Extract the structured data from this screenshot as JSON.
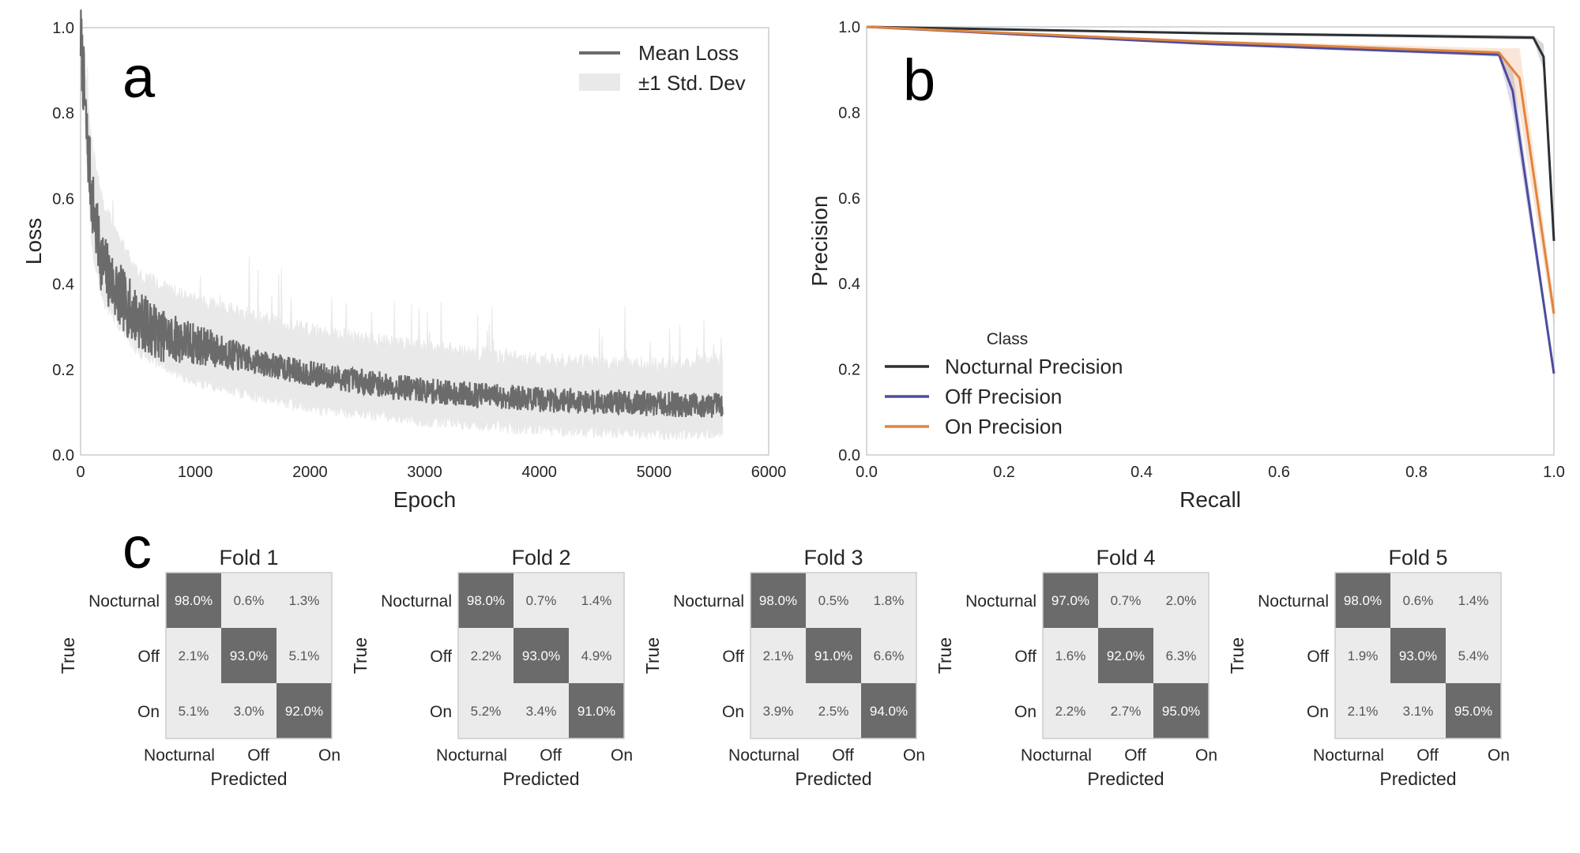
{
  "panel_labels": {
    "a": "a",
    "b": "b",
    "c": "c"
  },
  "colors": {
    "loss_mean": "#6b6b6b",
    "loss_band": "#e9e9e9",
    "nocturnal": "#2b3035",
    "off": "#4c4c9e",
    "on": "#e0843c",
    "cm_high": "#6b6b6b",
    "cm_low": "#ebebeb",
    "frame": "#cccccc"
  },
  "chart_data": [
    {
      "id": "loss",
      "type": "line",
      "xlabel": "Epoch",
      "ylabel": "Loss",
      "xlim": [
        0,
        6000
      ],
      "ylim": [
        0,
        1.0
      ],
      "xticks": [
        "0",
        "1000",
        "2000",
        "3000",
        "4000",
        "5000",
        "6000"
      ],
      "yticks": [
        "0.0",
        "0.2",
        "0.4",
        "0.6",
        "0.8",
        "1.0"
      ],
      "legend": {
        "position": "top-right",
        "entries": [
          "Mean Loss",
          "±1 Std. Dev"
        ]
      },
      "grid": false,
      "series": [
        {
          "name": "Mean Loss",
          "x": [
            0,
            25,
            50,
            100,
            150,
            200,
            300,
            400,
            500,
            700,
            1000,
            1500,
            2000,
            2500,
            3000,
            3500,
            4000,
            4500,
            5000,
            5600
          ],
          "y": [
            0.98,
            0.88,
            0.76,
            0.6,
            0.5,
            0.44,
            0.39,
            0.35,
            0.32,
            0.28,
            0.26,
            0.22,
            0.19,
            0.17,
            0.15,
            0.14,
            0.13,
            0.125,
            0.12,
            0.115
          ]
        }
      ],
      "band": {
        "name": "±1 Std. Dev",
        "x": [
          0,
          100,
          200,
          500,
          1000,
          2000,
          3000,
          4000,
          5000,
          5600
        ],
        "lower": [
          0.95,
          0.48,
          0.36,
          0.24,
          0.17,
          0.11,
          0.08,
          0.06,
          0.05,
          0.05
        ],
        "upper": [
          1.0,
          0.72,
          0.58,
          0.42,
          0.36,
          0.29,
          0.25,
          0.22,
          0.21,
          0.22
        ]
      }
    },
    {
      "id": "pr",
      "type": "line",
      "xlabel": "Recall",
      "ylabel": "Precision",
      "xlim": [
        0,
        1.0
      ],
      "ylim": [
        0,
        1.0
      ],
      "xticks": [
        "0.0",
        "0.2",
        "0.4",
        "0.6",
        "0.8",
        "1.0"
      ],
      "yticks": [
        "0.0",
        "0.2",
        "0.4",
        "0.6",
        "0.8",
        "1.0"
      ],
      "legend": {
        "position": "lower-left",
        "title": "Class"
      },
      "grid": false,
      "series": [
        {
          "name": "Nocturnal Precision",
          "x": [
            0,
            0.5,
            0.97,
            0.985,
            1.0
          ],
          "y": [
            1.0,
            0.985,
            0.975,
            0.93,
            0.5
          ],
          "band_lower": [
            1.0,
            0.983,
            0.97,
            0.9,
            0.48
          ],
          "band_upper": [
            1.0,
            0.988,
            0.98,
            0.96,
            0.52
          ]
        },
        {
          "name": "Off Precision",
          "x": [
            0,
            0.5,
            0.92,
            0.94,
            1.0
          ],
          "y": [
            1.0,
            0.96,
            0.935,
            0.85,
            0.19
          ],
          "band_lower": [
            1.0,
            0.958,
            0.93,
            0.8,
            0.18
          ],
          "band_upper": [
            1.0,
            0.963,
            0.94,
            0.9,
            0.2
          ]
        },
        {
          "name": "On Precision",
          "x": [
            0,
            0.5,
            0.92,
            0.95,
            1.0
          ],
          "y": [
            1.0,
            0.965,
            0.94,
            0.88,
            0.33
          ],
          "band_lower": [
            1.0,
            0.962,
            0.935,
            0.8,
            0.3
          ],
          "band_upper": [
            1.0,
            0.968,
            0.95,
            0.95,
            0.36
          ]
        }
      ]
    },
    {
      "id": "confusion",
      "type": "heatmap",
      "xlabel": "Predicted",
      "ylabel": "True",
      "classes": [
        "Nocturnal",
        "Off",
        "On"
      ],
      "folds": [
        {
          "title": "Fold 1",
          "cells": [
            [
              "98.0%",
              "0.6%",
              "1.3%"
            ],
            [
              "2.1%",
              "93.0%",
              "5.1%"
            ],
            [
              "5.1%",
              "3.0%",
              "92.0%"
            ]
          ]
        },
        {
          "title": "Fold 2",
          "cells": [
            [
              "98.0%",
              "0.7%",
              "1.4%"
            ],
            [
              "2.2%",
              "93.0%",
              "4.9%"
            ],
            [
              "5.2%",
              "3.4%",
              "91.0%"
            ]
          ]
        },
        {
          "title": "Fold 3",
          "cells": [
            [
              "98.0%",
              "0.5%",
              "1.8%"
            ],
            [
              "2.1%",
              "91.0%",
              "6.6%"
            ],
            [
              "3.9%",
              "2.5%",
              "94.0%"
            ]
          ]
        },
        {
          "title": "Fold 4",
          "cells": [
            [
              "97.0%",
              "0.7%",
              "2.0%"
            ],
            [
              "1.6%",
              "92.0%",
              "6.3%"
            ],
            [
              "2.2%",
              "2.7%",
              "95.0%"
            ]
          ]
        },
        {
          "title": "Fold 5",
          "cells": [
            [
              "98.0%",
              "0.6%",
              "1.4%"
            ],
            [
              "1.9%",
              "93.0%",
              "5.4%"
            ],
            [
              "2.1%",
              "3.1%",
              "95.0%"
            ]
          ]
        }
      ]
    }
  ]
}
